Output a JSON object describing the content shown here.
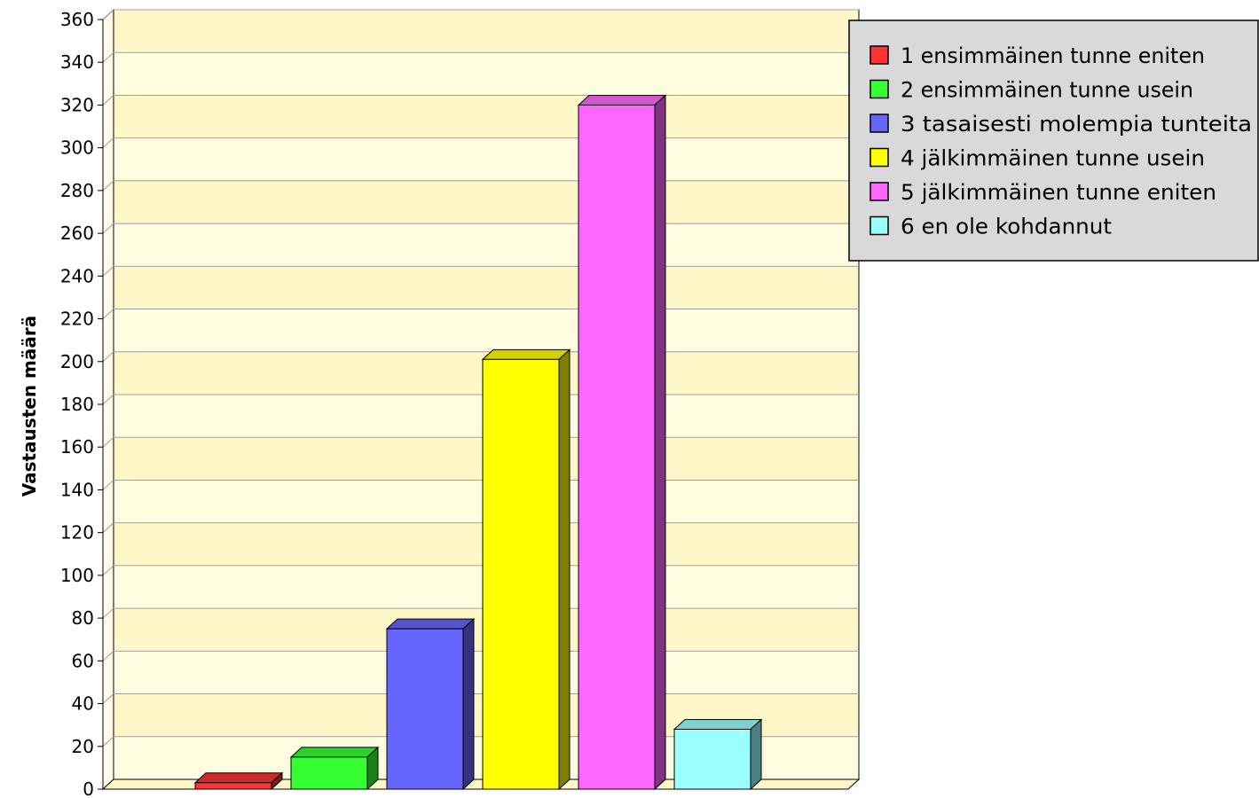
{
  "chart_data": {
    "type": "bar",
    "title": "",
    "xlabel": "",
    "ylabel": "Vastausten määrä",
    "ylim": [
      0,
      360
    ],
    "yticks": [
      0,
      20,
      40,
      60,
      80,
      100,
      120,
      140,
      160,
      180,
      200,
      220,
      240,
      260,
      280,
      300,
      320,
      340,
      360
    ],
    "grid": true,
    "legend_position": "top-right",
    "categories": [
      "1 ensimmäinen tunne eniten",
      "2 ensimmäinen tunne usein",
      "3 tasaisesti molempia tunteita",
      "4 jälkimmäinen tunne usein",
      "5 jälkimmäinen tunne eniten",
      "6 en ole kohdannut"
    ],
    "values": [
      3,
      15,
      75,
      201,
      320,
      28
    ],
    "colors": [
      "#ff3333",
      "#33ff33",
      "#6666ff",
      "#ffff00",
      "#ff66ff",
      "#99ffff"
    ],
    "legend": [
      "1 ensimmäinen tunne eniten",
      "2 ensimmäinen tunne usein",
      "3 tasaisesti molempia tunteita",
      "4 jälkimmäinen tunne usein",
      "5 jälkimmäinen tunne eniten",
      "6 en ole kohdannut"
    ]
  }
}
